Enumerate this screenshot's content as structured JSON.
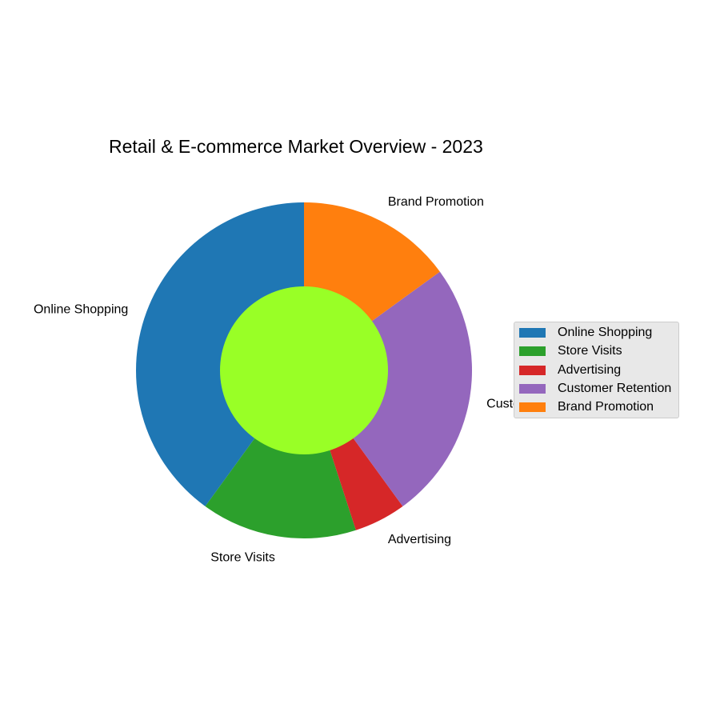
{
  "chart_data": {
    "type": "pie",
    "style": "donut",
    "title": "Retail & E-commerce Market Overview - 2023",
    "slices": [
      {
        "label": "Online Shopping",
        "value": 40,
        "color": "#1f77b4"
      },
      {
        "label": "Store Visits",
        "value": 15,
        "color": "#2ca02c"
      },
      {
        "label": "Advertising",
        "value": 5,
        "color": "#d62728"
      },
      {
        "label": "Customer Retention",
        "value": 25,
        "color": "#9467bd"
      },
      {
        "label": "Brand Promotion",
        "value": 15,
        "color": "#ff7f0e"
      }
    ],
    "center_color": "#99ff26",
    "start_angle_deg": 90,
    "direction": "counterclockwise",
    "legend_position": "right"
  }
}
